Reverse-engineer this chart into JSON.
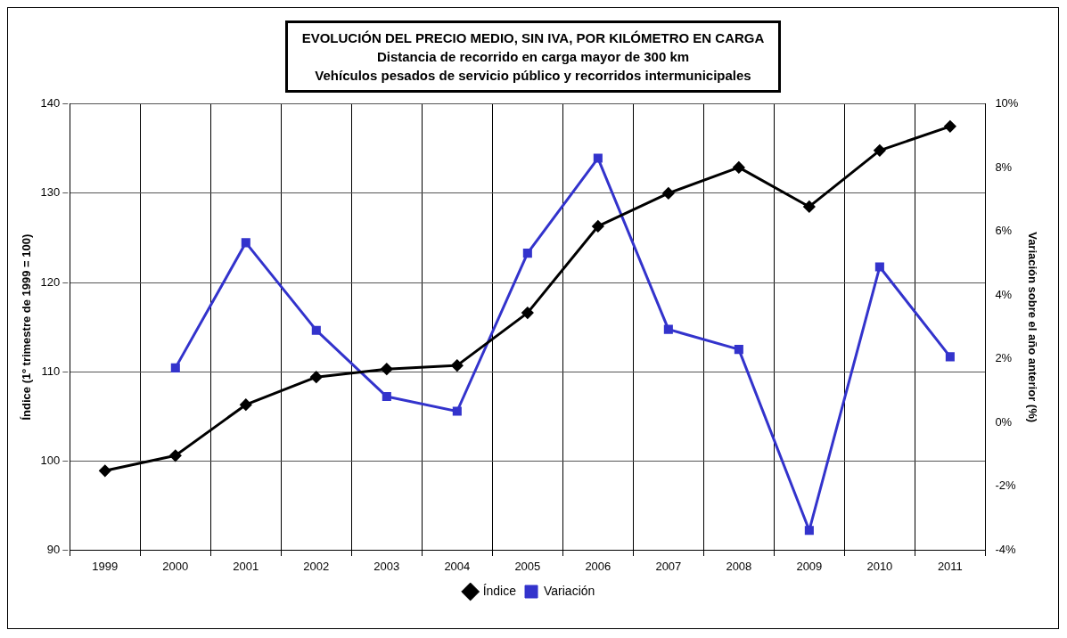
{
  "chart_data": {
    "type": "line",
    "title": "EVOLUCIÓN DEL PRECIO MEDIO, SIN IVA, POR KILÓMETRO EN CARGA",
    "subtitle": "Distancia de recorrido en carga mayor de 300 km\nVehículos pesados de servicio público y recorridos intermunicipales",
    "ylabel": "Índice (1º trimestre de 1999 = 100)",
    "y2label": "Variación sobre el año anterior (%)",
    "categories": [
      "1999",
      "2000",
      "2001",
      "2002",
      "2003",
      "2004",
      "2005",
      "2006",
      "2007",
      "2008",
      "2009",
      "2010",
      "2011"
    ],
    "series": [
      {
        "name": "Índice",
        "color": "#000000",
        "marker": "diamond",
        "values": [
          98.9,
          100.6,
          106.3,
          109.4,
          110.3,
          110.7,
          116.6,
          126.3,
          130.0,
          132.9,
          128.5,
          134.8,
          137.5
        ]
      },
      {
        "name": "Variación",
        "color": "#3333cc",
        "marker": "square",
        "axis": "y2",
        "values": [
          null,
          1.72,
          5.65,
          2.9,
          0.82,
          0.36,
          5.32,
          8.3,
          2.93,
          2.3,
          -3.38,
          4.89,
          2.07
        ]
      }
    ],
    "ylim": [
      90,
      140
    ],
    "yticks": [
      90,
      100,
      110,
      120,
      130,
      140
    ],
    "y2lim": [
      -4,
      10
    ],
    "y2ticks": [
      {
        "value": -4,
        "label": "-4%"
      },
      {
        "value": -2,
        "label": "-2%"
      },
      {
        "value": 0,
        "label": "0%"
      },
      {
        "value": 2,
        "label": "2%"
      },
      {
        "value": 4,
        "label": "4%"
      },
      {
        "value": 6,
        "label": "6%"
      },
      {
        "value": 8,
        "label": "8%"
      },
      {
        "value": 10,
        "label": "10%"
      }
    ],
    "grid": true,
    "legend": "bottom"
  }
}
